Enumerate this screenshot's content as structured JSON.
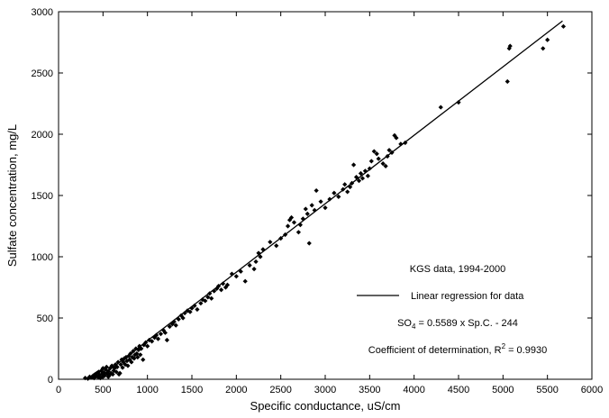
{
  "chart_data": {
    "type": "scatter",
    "xlabel": "Specific conductance, uS/cm",
    "ylabel": "Sulfate concentration, mg/L",
    "xlim": [
      0,
      6000
    ],
    "ylim": [
      0,
      3000
    ],
    "xticks": [
      0,
      500,
      1000,
      1500,
      2000,
      2500,
      3000,
      3500,
      4000,
      4500,
      5000,
      5500,
      6000
    ],
    "yticks": [
      0,
      500,
      1000,
      1500,
      2000,
      2500,
      3000
    ],
    "grid": false,
    "legend_position": "center-right",
    "annotations": {
      "dataset_label": "KGS data, 1994-2000",
      "regression_label": "Linear regression for data",
      "equation_left": "SO",
      "equation_sub": "4",
      "equation_right": " = 0.5589 x Sp.C. - 244",
      "r2_text": "Coefficient of determination, R",
      "r2_sup": "2",
      "r2_value": " = 0.9930"
    },
    "regression": {
      "name": "Linear regression for data",
      "slope": 0.5589,
      "intercept": -244,
      "x_range": [
        437,
        5670
      ]
    },
    "series": [
      {
        "name": "KGS data, 1994-2000",
        "points": [
          [
            300,
            10
          ],
          [
            330,
            5
          ],
          [
            350,
            20
          ],
          [
            370,
            15
          ],
          [
            390,
            30
          ],
          [
            400,
            10
          ],
          [
            410,
            40
          ],
          [
            420,
            25
          ],
          [
            430,
            50
          ],
          [
            440,
            20
          ],
          [
            450,
            60
          ],
          [
            460,
            35
          ],
          [
            470,
            10
          ],
          [
            480,
            70
          ],
          [
            490,
            45
          ],
          [
            500,
            90
          ],
          [
            500,
            20
          ],
          [
            510,
            55
          ],
          [
            520,
            30
          ],
          [
            530,
            80
          ],
          [
            540,
            100
          ],
          [
            550,
            45
          ],
          [
            560,
            20
          ],
          [
            560,
            65
          ],
          [
            570,
            30
          ],
          [
            580,
            90
          ],
          [
            590,
            50
          ],
          [
            600,
            110
          ],
          [
            610,
            40
          ],
          [
            620,
            70
          ],
          [
            630,
            90
          ],
          [
            640,
            120
          ],
          [
            650,
            60
          ],
          [
            660,
            100
          ],
          [
            670,
            140
          ],
          [
            680,
            40
          ],
          [
            690,
            50
          ],
          [
            700,
            120
          ],
          [
            710,
            160
          ],
          [
            720,
            95
          ],
          [
            730,
            140
          ],
          [
            740,
            170
          ],
          [
            750,
            120
          ],
          [
            760,
            180
          ],
          [
            770,
            150
          ],
          [
            780,
            110
          ],
          [
            790,
            190
          ],
          [
            800,
            160
          ],
          [
            810,
            210
          ],
          [
            820,
            140
          ],
          [
            830,
            180
          ],
          [
            840,
            230
          ],
          [
            850,
            170
          ],
          [
            860,
            200
          ],
          [
            870,
            250
          ],
          [
            880,
            210
          ],
          [
            890,
            180
          ],
          [
            900,
            240
          ],
          [
            910,
            270
          ],
          [
            920,
            200
          ],
          [
            930,
            250
          ],
          [
            950,
            160
          ],
          [
            960,
            280
          ],
          [
            980,
            300
          ],
          [
            1000,
            270
          ],
          [
            1020,
            320
          ],
          [
            1050,
            310
          ],
          [
            1080,
            340
          ],
          [
            1100,
            360
          ],
          [
            1120,
            330
          ],
          [
            1150,
            370
          ],
          [
            1180,
            400
          ],
          [
            1200,
            380
          ],
          [
            1220,
            320
          ],
          [
            1250,
            430
          ],
          [
            1280,
            450
          ],
          [
            1300,
            470
          ],
          [
            1320,
            440
          ],
          [
            1350,
            490
          ],
          [
            1380,
            520
          ],
          [
            1400,
            500
          ],
          [
            1420,
            540
          ],
          [
            1450,
            560
          ],
          [
            1480,
            550
          ],
          [
            1500,
            580
          ],
          [
            1530,
            600
          ],
          [
            1560,
            570
          ],
          [
            1600,
            620
          ],
          [
            1620,
            650
          ],
          [
            1650,
            640
          ],
          [
            1680,
            670
          ],
          [
            1700,
            700
          ],
          [
            1720,
            660
          ],
          [
            1750,
            720
          ],
          [
            1780,
            740
          ],
          [
            1800,
            760
          ],
          [
            1830,
            730
          ],
          [
            1850,
            780
          ],
          [
            1880,
            750
          ],
          [
            1900,
            770
          ],
          [
            1950,
            860
          ],
          [
            2000,
            840
          ],
          [
            2050,
            880
          ],
          [
            2100,
            800
          ],
          [
            2150,
            930
          ],
          [
            2200,
            900
          ],
          [
            2220,
            960
          ],
          [
            2250,
            1030
          ],
          [
            2270,
            1000
          ],
          [
            2300,
            1060
          ],
          [
            2380,
            1120
          ],
          [
            2450,
            1090
          ],
          [
            2500,
            1150
          ],
          [
            2550,
            1180
          ],
          [
            2580,
            1250
          ],
          [
            2600,
            1300
          ],
          [
            2620,
            1320
          ],
          [
            2650,
            1280
          ],
          [
            2700,
            1200
          ],
          [
            2720,
            1260
          ],
          [
            2750,
            1310
          ],
          [
            2780,
            1390
          ],
          [
            2800,
            1350
          ],
          [
            2820,
            1110
          ],
          [
            2850,
            1420
          ],
          [
            2880,
            1380
          ],
          [
            2900,
            1540
          ],
          [
            2950,
            1450
          ],
          [
            3000,
            1400
          ],
          [
            3050,
            1470
          ],
          [
            3100,
            1520
          ],
          [
            3150,
            1490
          ],
          [
            3200,
            1550
          ],
          [
            3220,
            1590
          ],
          [
            3250,
            1530
          ],
          [
            3280,
            1570
          ],
          [
            3300,
            1600
          ],
          [
            3320,
            1750
          ],
          [
            3350,
            1650
          ],
          [
            3380,
            1620
          ],
          [
            3400,
            1680
          ],
          [
            3420,
            1640
          ],
          [
            3450,
            1700
          ],
          [
            3480,
            1660
          ],
          [
            3500,
            1720
          ],
          [
            3520,
            1780
          ],
          [
            3550,
            1860
          ],
          [
            3580,
            1840
          ],
          [
            3600,
            1800
          ],
          [
            3650,
            1760
          ],
          [
            3680,
            1740
          ],
          [
            3700,
            1820
          ],
          [
            3720,
            1870
          ],
          [
            3750,
            1850
          ],
          [
            3780,
            1990
          ],
          [
            3800,
            1970
          ],
          [
            3850,
            1920
          ],
          [
            3900,
            1930
          ],
          [
            4300,
            2220
          ],
          [
            4500,
            2260
          ],
          [
            5050,
            2430
          ],
          [
            5070,
            2700
          ],
          [
            5080,
            2720
          ],
          [
            5450,
            2700
          ],
          [
            5500,
            2770
          ],
          [
            5680,
            2880
          ]
        ]
      }
    ]
  }
}
